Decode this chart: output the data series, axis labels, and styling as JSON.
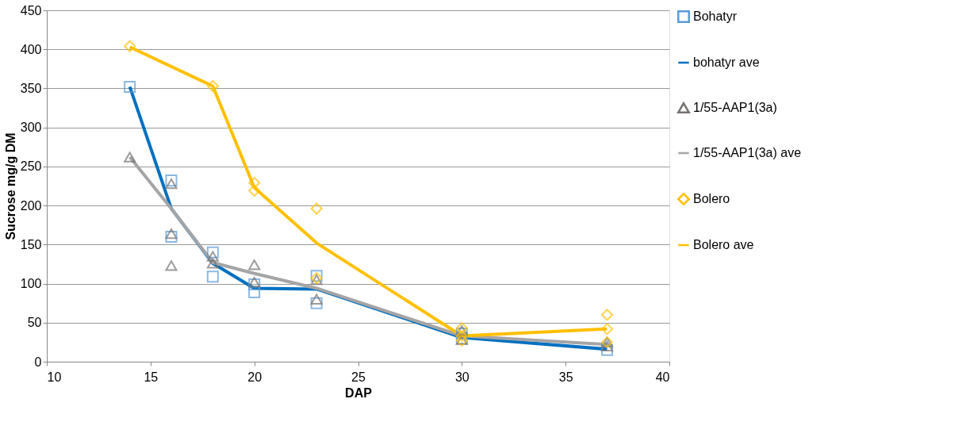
{
  "chart_data": {
    "type": "scatter",
    "xlabel": "DAP",
    "ylabel": "Sucrose mg/g DM",
    "xlim": [
      10,
      40
    ],
    "xticks": [
      10,
      15,
      20,
      25,
      30,
      35,
      40
    ],
    "ylim": [
      0,
      450
    ],
    "yticks": [
      0,
      50,
      100,
      150,
      200,
      250,
      300,
      350,
      400,
      450
    ],
    "grid": "y",
    "legend": "right",
    "series": [
      {
        "name": "Bohatyr",
        "marker": "square",
        "color": "#5b9bd5",
        "x": [
          14,
          16,
          16,
          18,
          18,
          20,
          20,
          23,
          23,
          30,
          30,
          37
        ],
        "values": [
          352,
          232,
          160,
          140,
          109,
          99,
          89,
          110,
          75,
          36,
          30,
          15
        ]
      },
      {
        "name": "bohatyr ave",
        "type": "line",
        "marker": "none",
        "color": "#0070c0",
        "x": [
          14,
          16,
          18,
          20,
          23,
          30,
          37
        ],
        "values": [
          352,
          196,
          126,
          94,
          93,
          31,
          16
        ]
      },
      {
        "name": "1/55-AAP1(3a)",
        "marker": "triangle",
        "color": "#767171",
        "x": [
          14,
          16,
          16,
          16,
          18,
          18,
          20,
          20,
          23,
          23,
          30,
          30,
          37,
          37
        ],
        "values": [
          262,
          228,
          164,
          123,
          135,
          126,
          124,
          102,
          105,
          80,
          40,
          28,
          25,
          20
        ]
      },
      {
        "name": "1/55-AAP1(3a) ave",
        "type": "line",
        "marker": "none",
        "color": "#a5a5a5",
        "x": [
          14,
          16,
          18,
          20,
          23,
          30,
          37
        ],
        "values": [
          262,
          196,
          127,
          113,
          94,
          33,
          22
        ]
      },
      {
        "name": "Bolero",
        "marker": "diamond",
        "color": "#ffc000",
        "x": [
          14,
          18,
          20,
          20,
          23,
          23,
          30,
          30,
          30,
          37,
          37,
          37
        ],
        "values": [
          404,
          353,
          229,
          219,
          196,
          107,
          43,
          33,
          27,
          60,
          42,
          25
        ]
      },
      {
        "name": "Bolero ave",
        "type": "line",
        "marker": "none",
        "color": "#ffc000",
        "x": [
          14,
          18,
          20,
          23,
          30,
          37
        ],
        "values": [
          403,
          353,
          223,
          152,
          33,
          42
        ]
      }
    ]
  }
}
